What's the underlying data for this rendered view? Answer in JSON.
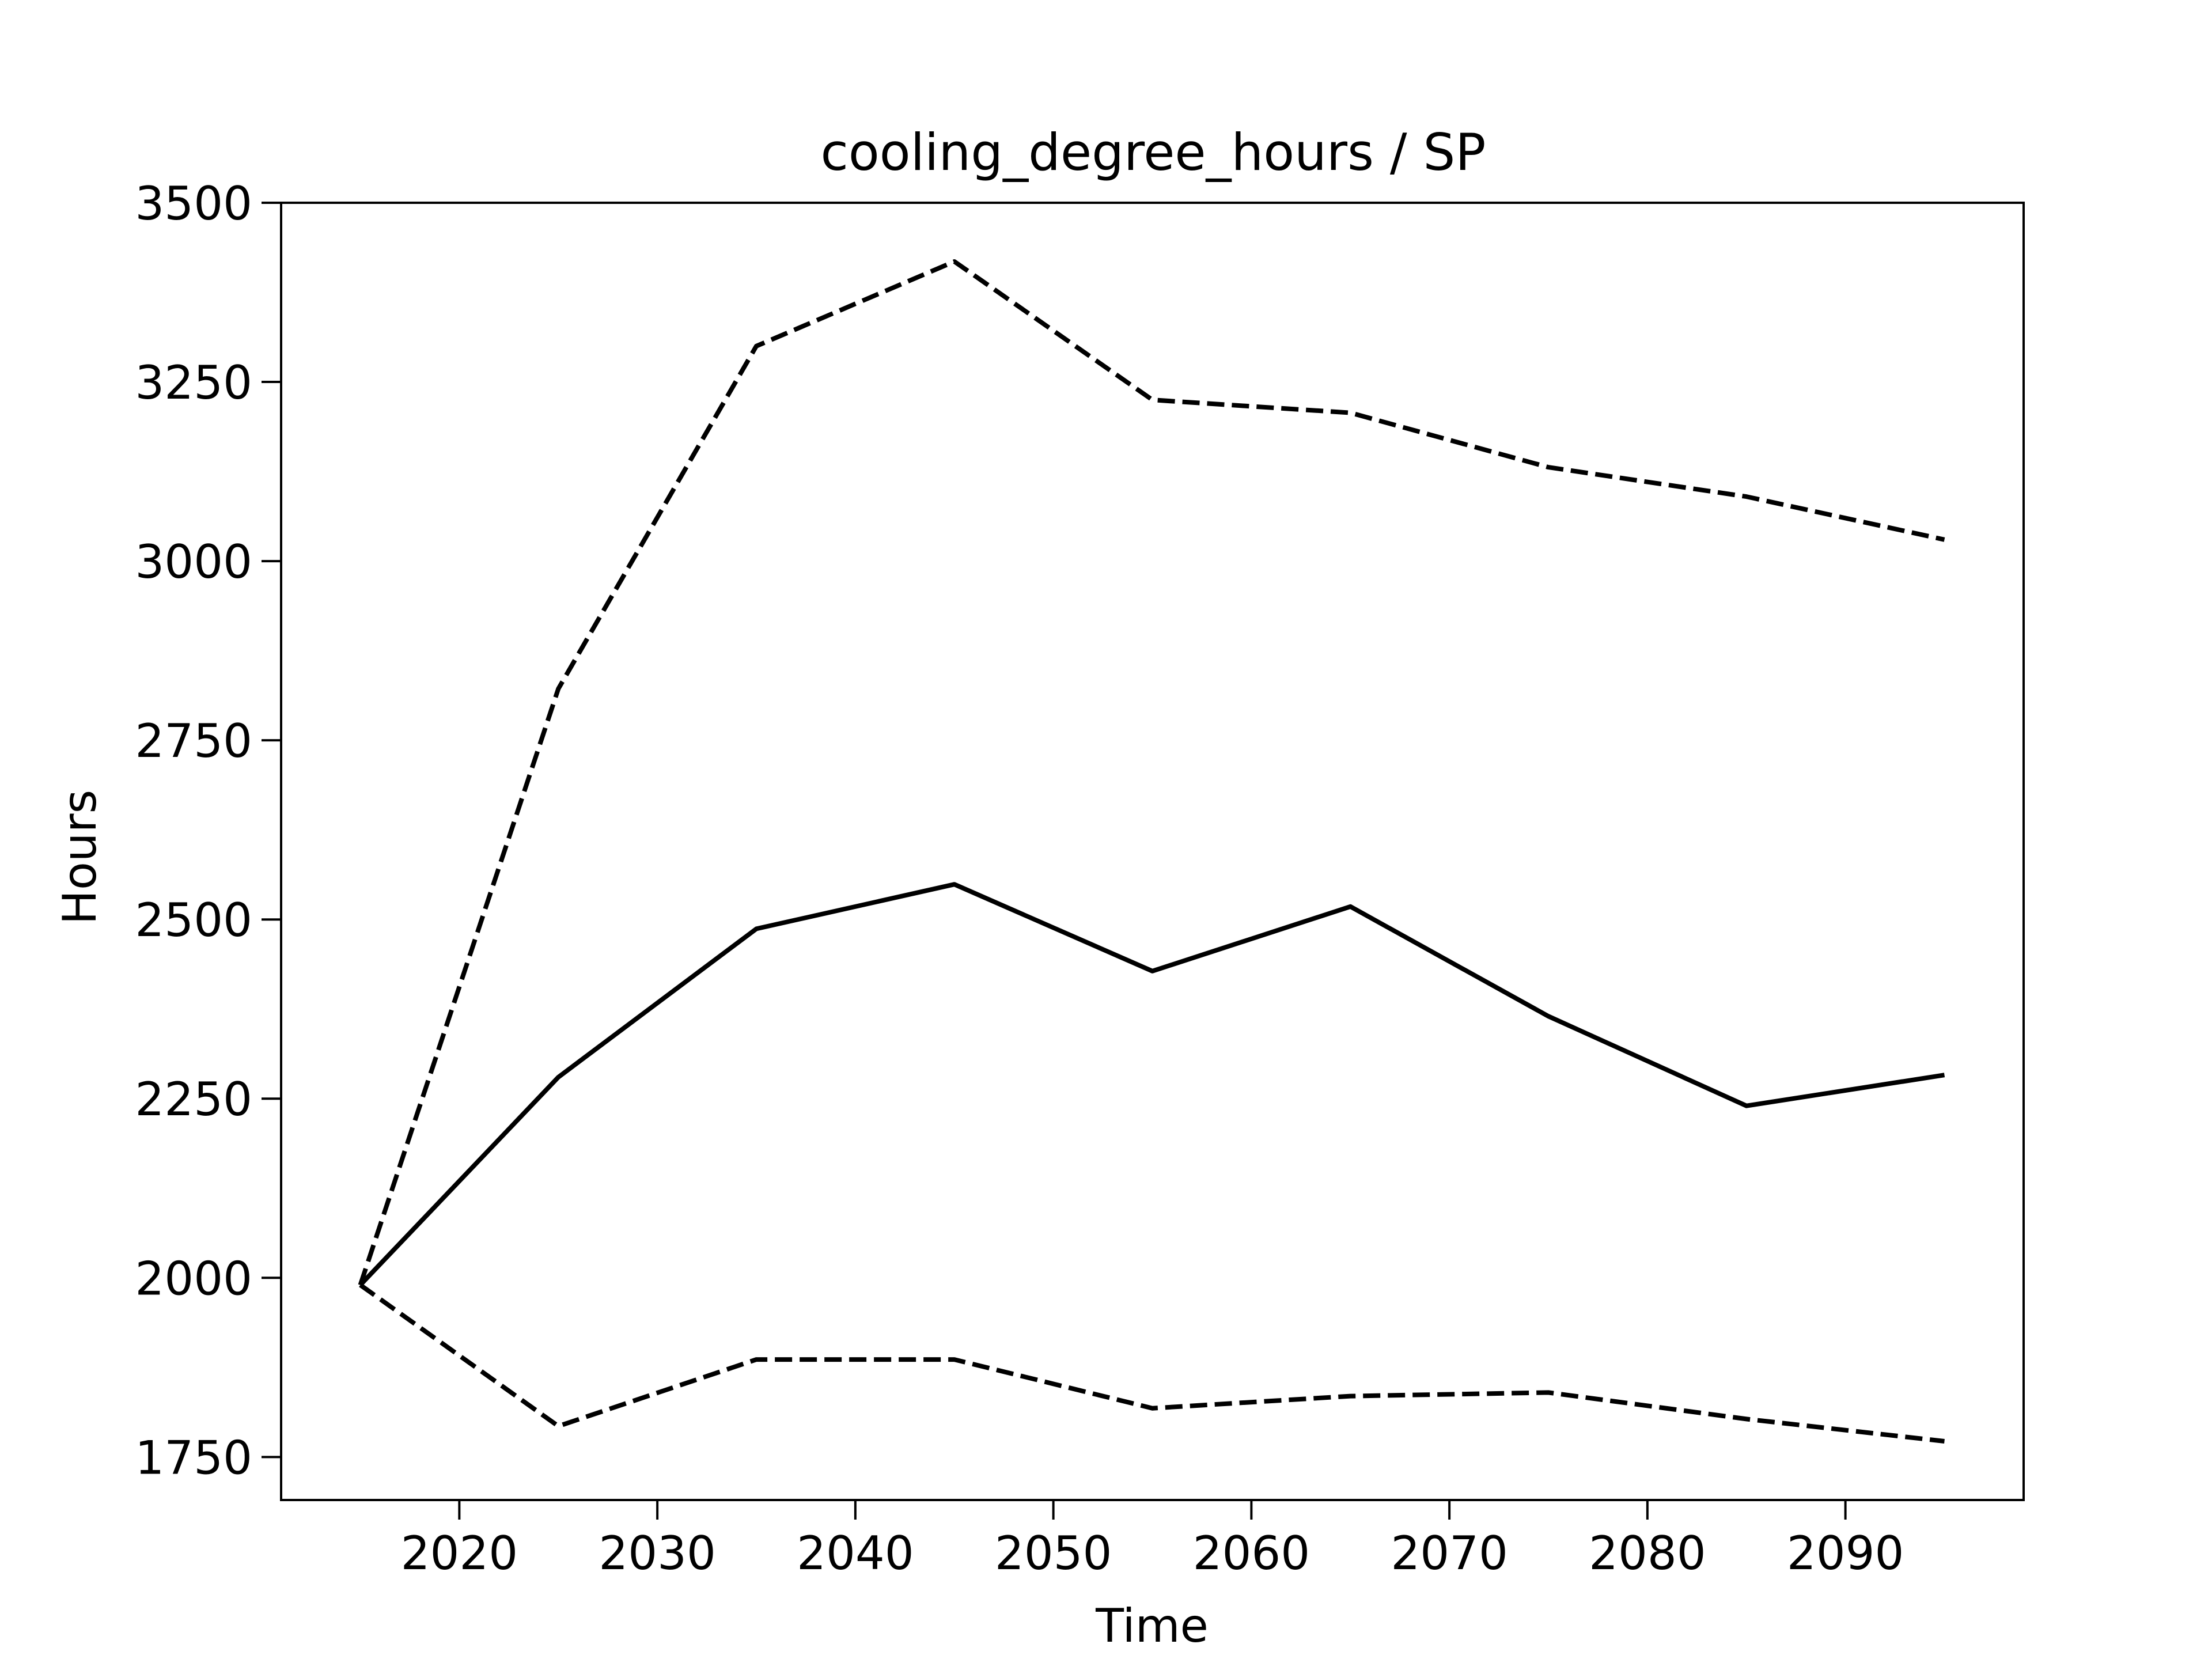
{
  "chart_data": {
    "type": "line",
    "title": "cooling_degree_hours / SP",
    "xlabel": "Time",
    "ylabel": "Hours",
    "xlim": [
      2011,
      2099
    ],
    "ylim": [
      1690,
      3500
    ],
    "x_ticks": [
      2020,
      2030,
      2040,
      2050,
      2060,
      2070,
      2080,
      2090
    ],
    "y_ticks": [
      1750,
      2000,
      2250,
      2500,
      2750,
      3000,
      3250,
      3500
    ],
    "x": [
      2015,
      2025,
      2035,
      2045,
      2055,
      2065,
      2075,
      2085,
      2095
    ],
    "grid": false,
    "legend": "none",
    "series": [
      {
        "style": "solid",
        "color": "#000000",
        "values": [
          1990,
          2280,
          2487,
          2549,
          2428,
          2518,
          2365,
          2240,
          2283
        ]
      },
      {
        "style": "dashed",
        "color": "#000000",
        "values": [
          1990,
          2822,
          3300,
          3418,
          3225,
          3207,
          3131,
          3090,
          3030
        ]
      },
      {
        "style": "dashed",
        "color": "#000000",
        "values": [
          1990,
          1793,
          1886,
          1886,
          1818,
          1835,
          1840,
          1803,
          1772
        ]
      }
    ]
  }
}
